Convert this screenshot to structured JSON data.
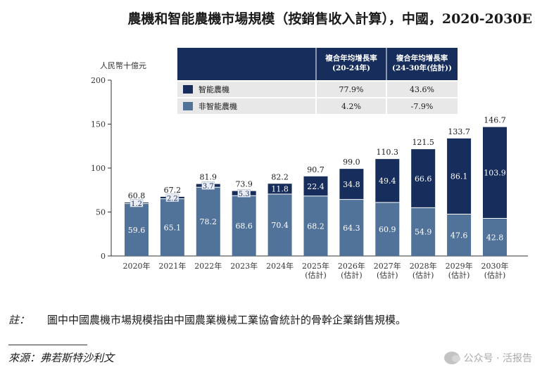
{
  "title": "農機和智能農機市場規模（按銷售收入計算），中國，2020-2030E",
  "note_label": "註：",
  "note_text": "圖中中國農機市場規模指由中國農業機械工業協會統計的骨幹企業銷售規模。",
  "source": "來源：弗若斯特沙利文",
  "watermark": {
    "icon": "wechat-icon",
    "text": "公众号 · 活报告",
    "sub": "活报告"
  },
  "chart_data": {
    "type": "bar",
    "stacked": true,
    "ylabel": "人民幣十億元",
    "ylim": [
      0,
      200
    ],
    "yticks": [
      0,
      50,
      100,
      150,
      200
    ],
    "categories": [
      [
        "2020年"
      ],
      [
        "2021年"
      ],
      [
        "2022年"
      ],
      [
        "2023年"
      ],
      [
        "2024年"
      ],
      [
        "2025年",
        "(估計)"
      ],
      [
        "2026年",
        "(估計)"
      ],
      [
        "2027年",
        "(估計)"
      ],
      [
        "2028年",
        "(估計)"
      ],
      [
        "2029年",
        "(估計)"
      ],
      [
        "2030年",
        "(估計)"
      ]
    ],
    "series": [
      {
        "name": "非智能農機",
        "color": "#51739a",
        "values": [
          59.6,
          65.1,
          78.2,
          68.6,
          70.4,
          68.2,
          64.3,
          60.9,
          54.9,
          47.6,
          42.8
        ],
        "labels": [
          "59.6",
          "65.1",
          "78.2",
          "68.6",
          "70.4",
          "68.2",
          "64.3",
          "60.9",
          "54.9",
          "47.6",
          "42.8"
        ]
      },
      {
        "name": "智能農機",
        "color": "#172e5c",
        "values": [
          1.2,
          2.2,
          3.7,
          5.3,
          11.8,
          22.4,
          34.8,
          49.4,
          66.6,
          86.1,
          103.9
        ],
        "labels": [
          "1.2",
          "2.2",
          "3.7",
          "5.3",
          "11.8",
          "22.4",
          "34.8",
          "49.4",
          "66.6",
          "86.1",
          "103.9"
        ]
      }
    ],
    "totals": [
      "60.8",
      "67.2",
      "81.9",
      "73.9",
      "82.2",
      "90.7",
      "99.0",
      "110.3",
      "121.5",
      "133.7",
      "146.7"
    ],
    "legend_table": {
      "headers": [
        "複合年均增長率\n(20-24年)",
        "複合年均增長率\n(24-30年(估計))"
      ],
      "rows": [
        {
          "name": "智能農機",
          "color": "#172e5c",
          "cagr1": "77.9%",
          "cagr2": "43.6%"
        },
        {
          "name": "非智能農機",
          "color": "#51739a",
          "cagr1": "4.2%",
          "cagr2": "-7.9%"
        }
      ]
    },
    "grid": false
  }
}
